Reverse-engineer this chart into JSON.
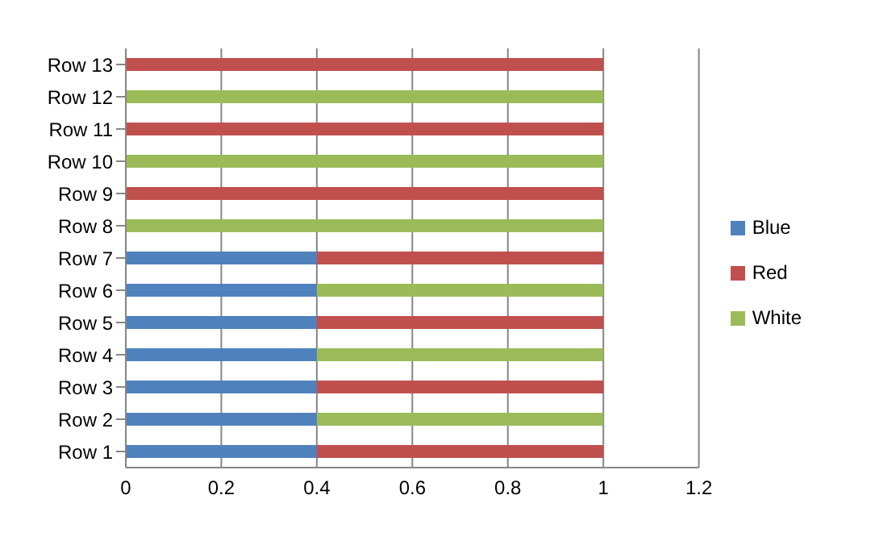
{
  "chart_data": {
    "type": "bar",
    "orientation": "horizontal",
    "stacked": true,
    "categories": [
      "Row 13",
      "Row 12",
      "Row 11",
      "Row 10",
      "Row 9",
      "Row 8",
      "Row 7",
      "Row 6",
      "Row 5",
      "Row 4",
      "Row 3",
      "Row 2",
      "Row 1"
    ],
    "series": [
      {
        "name": "Blue",
        "color": "#4f81bd",
        "values": [
          null,
          null,
          null,
          null,
          null,
          null,
          0.4,
          0.4,
          0.4,
          0.4,
          0.4,
          0.4,
          0.4
        ]
      },
      {
        "name": "Red",
        "color": "#c0504d",
        "values": [
          1,
          null,
          1,
          null,
          1,
          null,
          0.6,
          null,
          0.6,
          null,
          0.6,
          null,
          0.6
        ]
      },
      {
        "name": "White",
        "color": "#9bbb59",
        "values": [
          null,
          1,
          null,
          1,
          null,
          1,
          null,
          0.6,
          null,
          0.6,
          null,
          0.6,
          null
        ]
      }
    ],
    "xlim": [
      0,
      1.2
    ],
    "xticks": [
      0,
      0.2,
      0.4,
      0.6,
      0.8,
      1,
      1.2
    ],
    "grid": "x",
    "legend": "right"
  }
}
